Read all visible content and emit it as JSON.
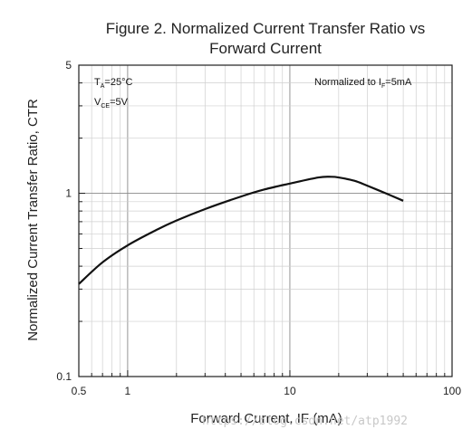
{
  "chart_data": {
    "type": "line",
    "title_line1": "Figure 2. Normalized Current Transfer Ratio vs",
    "title_line2": "Forward Current",
    "xlabel": "Forward Current, IF (mA)",
    "ylabel": "Normalized Current Transfer Ratio, CTR",
    "x_scale": "log",
    "y_scale": "log",
    "xlim": [
      0.5,
      100
    ],
    "ylim": [
      0.1,
      5
    ],
    "x_ticks": [
      {
        "value": 0.5,
        "label": "0.5"
      },
      {
        "value": 1,
        "label": "1"
      },
      {
        "value": 10,
        "label": "10"
      },
      {
        "value": 100,
        "label": "100"
      }
    ],
    "y_ticks": [
      {
        "value": 0.1,
        "label": "0.1"
      },
      {
        "value": 1,
        "label": "1"
      },
      {
        "value": 5,
        "label": "5"
      }
    ],
    "grid": true,
    "annotations": {
      "ta_main": "T",
      "ta_sub": "A",
      "ta_value": "=25°C",
      "vce_main": "V",
      "vce_sub": "CE",
      "vce_value": "=5V",
      "norm_main": "Normalized to I",
      "norm_sub": "F",
      "norm_value": "=5mA"
    },
    "series": [
      {
        "x": [
          0.5,
          0.7,
          1,
          1.5,
          2,
          3,
          5,
          7,
          10,
          15,
          18,
          20,
          25,
          30,
          40,
          50
        ],
        "y": [
          0.32,
          0.42,
          0.52,
          0.63,
          0.71,
          0.82,
          0.96,
          1.05,
          1.13,
          1.22,
          1.23,
          1.22,
          1.17,
          1.1,
          0.99,
          0.91
        ]
      }
    ]
  },
  "watermark": "https://blog.csdn.net/atp1992"
}
